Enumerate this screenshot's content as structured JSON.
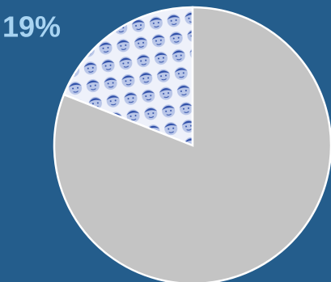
{
  "chart_data": {
    "type": "pie",
    "values": [
      19,
      81
    ],
    "value_labels": [
      "19%",
      null
    ],
    "colors": [
      "url(#faces)",
      "#c4c4c4"
    ],
    "label_color": "#a8d4f2",
    "background": "#245d8c"
  }
}
